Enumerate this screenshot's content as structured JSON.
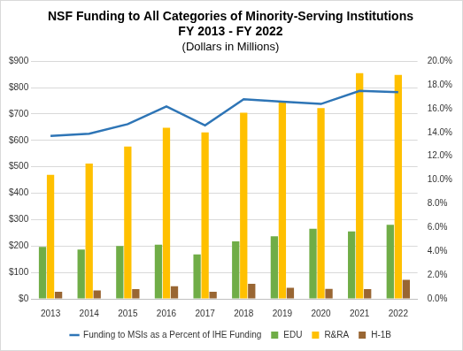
{
  "chart_data": {
    "type": "bar",
    "title": [
      "NSF Funding to All Categories of Minority-Serving Institutions",
      "FY 2013 - FY 2022"
    ],
    "subtitle": "(Dollars in Millions)",
    "categories": [
      "2013",
      "2014",
      "2015",
      "2016",
      "2017",
      "2018",
      "2019",
      "2020",
      "2021",
      "2022"
    ],
    "series": [
      {
        "name": "EDU",
        "color": "#70ad47",
        "type": "bar",
        "values": [
          197,
          187,
          200,
          205,
          168,
          218,
          237,
          265,
          255,
          280
        ]
      },
      {
        "name": "R&RA",
        "color": "#ffc000",
        "type": "bar",
        "values": [
          470,
          512,
          577,
          648,
          630,
          705,
          747,
          722,
          855,
          848
        ]
      },
      {
        "name": "H-1B",
        "color": "#996633",
        "type": "bar",
        "values": [
          27,
          32,
          37,
          48,
          27,
          57,
          42,
          38,
          37,
          72
        ]
      },
      {
        "name": "Funding to MSIs as a Percent of IHE Funding",
        "color": "#2e75b6",
        "type": "line",
        "axis": "y2",
        "marker": "none",
        "line_style": "solid",
        "values": [
          13.7,
          13.9,
          14.7,
          16.2,
          14.6,
          16.8,
          16.6,
          16.4,
          17.5,
          17.4
        ]
      }
    ],
    "ylim": [
      0,
      900
    ],
    "yticks": [
      {
        "value": 0,
        "label": "$0"
      },
      {
        "value": 100,
        "label": "$100"
      },
      {
        "value": 200,
        "label": "$200"
      },
      {
        "value": 300,
        "label": "$300"
      },
      {
        "value": 400,
        "label": "$400"
      },
      {
        "value": 500,
        "label": "$500"
      },
      {
        "value": 600,
        "label": "$600"
      },
      {
        "value": 700,
        "label": "$700"
      },
      {
        "value": 800,
        "label": "$800"
      },
      {
        "value": 900,
        "label": "$900"
      }
    ],
    "y2lim": [
      0,
      20
    ],
    "y2ticks": [
      {
        "value": 0,
        "label": "0.0%"
      },
      {
        "value": 2,
        "label": "2.0%"
      },
      {
        "value": 4,
        "label": "4.0%"
      },
      {
        "value": 6,
        "label": "6.0%"
      },
      {
        "value": 8,
        "label": "8.0%"
      },
      {
        "value": 10,
        "label": "10.0%"
      },
      {
        "value": 12,
        "label": "12.0%"
      },
      {
        "value": 14,
        "label": "14.0%"
      },
      {
        "value": 16,
        "label": "16.0%"
      },
      {
        "value": 18,
        "label": "18.0%"
      },
      {
        "value": 20,
        "label": "20.0%"
      }
    ],
    "grid": true,
    "legend": "bottom",
    "data_labels": false
  }
}
